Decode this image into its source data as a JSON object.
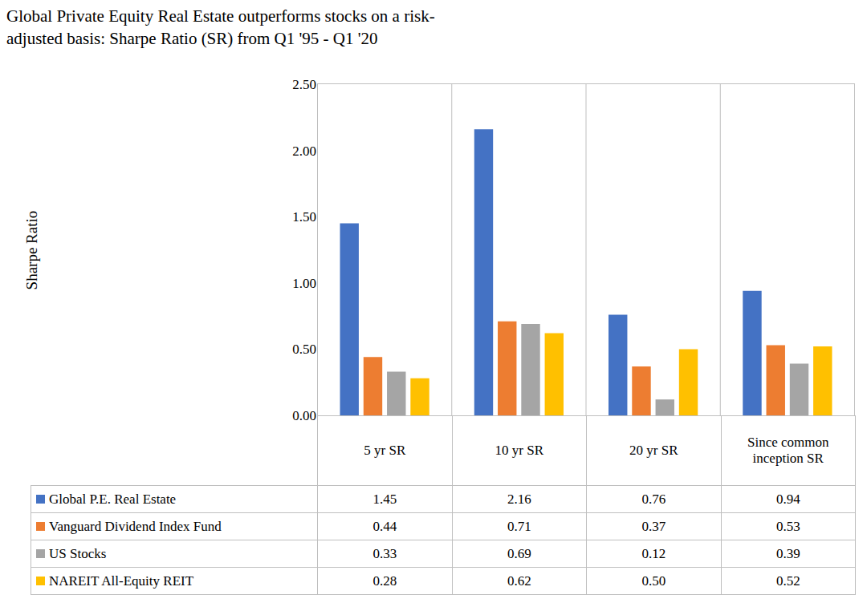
{
  "chart_data": {
    "type": "bar",
    "title": "Global Private Equity Real Estate outperforms stocks on a risk-adjusted basis: Sharpe Ratio (SR) from Q1 '95 - Q1 '20",
    "y_label": "Sharpe Ratio",
    "categories": [
      "5 yr SR",
      "10 yr SR",
      "20 yr SR",
      "Since common inception SR"
    ],
    "series": [
      {
        "name": "Global P.E. Real Estate",
        "color": "#4472c4",
        "values": [
          1.45,
          2.16,
          0.76,
          0.94
        ],
        "value_labels": [
          "1.45",
          "2.16",
          "0.76",
          "0.94"
        ]
      },
      {
        "name": "Vanguard Dividend Index Fund",
        "color": "#ed7d31",
        "values": [
          0.44,
          0.71,
          0.37,
          0.53
        ],
        "value_labels": [
          "0.44",
          "0.71",
          "0.37",
          "0.53"
        ]
      },
      {
        "name": "US Stocks",
        "color": "#a5a5a5",
        "values": [
          0.33,
          0.69,
          0.12,
          0.39
        ],
        "value_labels": [
          "0.33",
          "0.69",
          "0.12",
          "0.39"
        ]
      },
      {
        "name": "NAREIT All-Equity REIT",
        "color": "#ffc000",
        "values": [
          0.28,
          0.62,
          0.5,
          0.52
        ],
        "value_labels": [
          "0.28",
          "0.62",
          "0.50",
          "0.52"
        ]
      }
    ],
    "ylim": [
      0,
      2.5
    ],
    "yticks": [
      {
        "value": 0,
        "label": "0.00"
      },
      {
        "value": 0.5,
        "label": "0.50"
      },
      {
        "value": 1,
        "label": "1.00"
      },
      {
        "value": 1.5,
        "label": "1.50"
      },
      {
        "value": 2,
        "label": "2.00"
      },
      {
        "value": 2.5,
        "label": "2.50"
      }
    ],
    "grid": false
  }
}
